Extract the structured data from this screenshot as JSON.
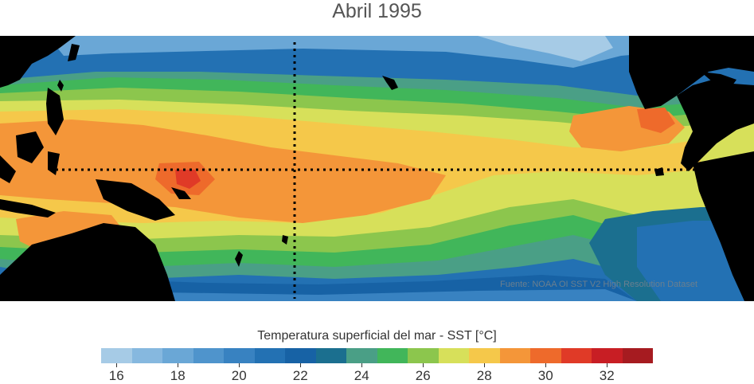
{
  "title": "Abril 1995",
  "source_note": "Fuente: NOAA OI SST V2 High Resolution Dataset",
  "colorbar": {
    "label": "Temperatura superficial del mar - SST  [°C]",
    "colors": [
      "#a6cbe6",
      "#86b8df",
      "#6aa7d6",
      "#4f94cc",
      "#3882c1",
      "#2371b3",
      "#1762a5",
      "#1b6f8f",
      "#4a9f86",
      "#41b65a",
      "#8cc64d",
      "#d7e05a",
      "#f5c84a",
      "#f49639",
      "#ee6a2b",
      "#e03a27",
      "#c81e24",
      "#a61b20"
    ],
    "tick_values": [
      16,
      18,
      20,
      22,
      24,
      26,
      28,
      30,
      32
    ],
    "range": [
      15.5,
      33.5
    ]
  },
  "map": {
    "colors": {
      "land": "#000000",
      "c16": "#a6cbe6",
      "c17": "#86b8df",
      "c18": "#6aa7d6",
      "c19": "#4f94cc",
      "c20": "#3882c1",
      "c21": "#2371b3",
      "c22": "#1762a5",
      "c23": "#1b6f8f",
      "c24": "#4a9f86",
      "c25": "#41b65a",
      "c26": "#8cc64d",
      "c27": "#d7e05a",
      "c28": "#f5c84a",
      "c29": "#f49639",
      "c30": "#ee6a2b",
      "c31": "#e03a27"
    }
  }
}
